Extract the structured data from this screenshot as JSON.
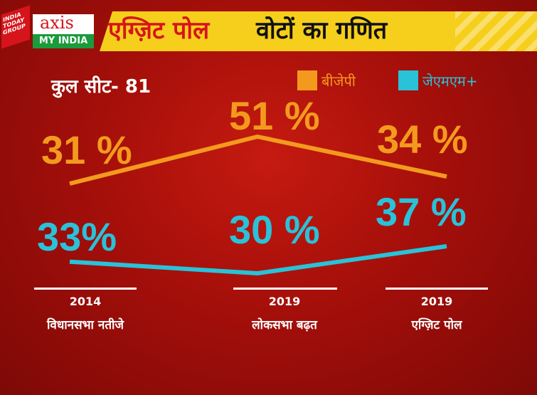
{
  "logo": {
    "badge_text": "INDIA TODAY GROUP",
    "brand_top": "axis",
    "brand_bottom": "MY INDIA"
  },
  "banner": {
    "title_red": "एग्ज़िट पोल",
    "title_black": "वोटों का गणित"
  },
  "total_seats": "कुल सीट- 81",
  "colors": {
    "bjp": "#f39a1e",
    "jmm": "#29c2d9",
    "background": "#b3120c",
    "banner": "#f6ce1c"
  },
  "chart_data": {
    "type": "line",
    "categories": [
      {
        "year": "2014",
        "label": "विधानसभा नतीजे"
      },
      {
        "year": "2019",
        "label": "लोकसभा बढ़त"
      },
      {
        "year": "2019",
        "label": "एग्ज़िट पोल"
      }
    ],
    "series": [
      {
        "name": "बीजेपी",
        "color": "#f39a1e",
        "values": [
          31,
          51,
          34
        ],
        "labels": [
          "31 %",
          "51 %",
          "34 %"
        ]
      },
      {
        "name": "जेएमएम+",
        "color": "#29c2d9",
        "values": [
          33,
          30,
          37
        ],
        "labels": [
          "33%",
          "30 %",
          "37 %"
        ]
      }
    ],
    "legend": "top-right",
    "grid": false
  }
}
